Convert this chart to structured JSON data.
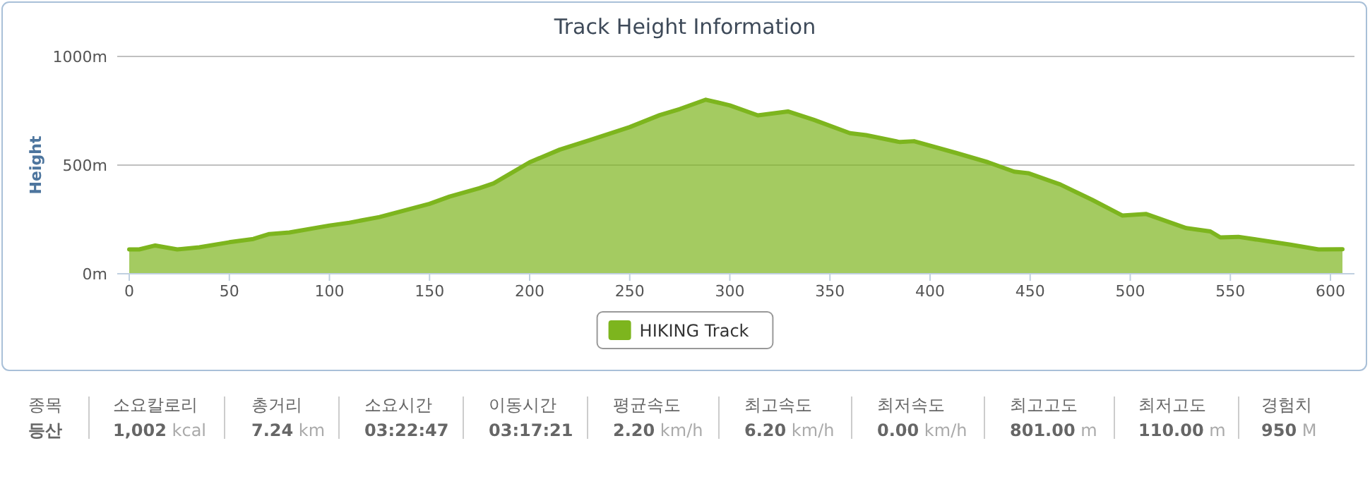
{
  "chart_data": [
    {
      "type": "area",
      "title": "Track Height Information",
      "ylabel": "Height",
      "xlim": [
        -6,
        612
      ],
      "xticks": [
        0,
        50,
        100,
        150,
        200,
        250,
        300,
        350,
        400,
        450,
        500,
        550,
        600
      ],
      "ylim": [
        0,
        1000
      ],
      "yticks": [
        {
          "value": 0,
          "label": "0m"
        },
        {
          "value": 500,
          "label": "500m"
        },
        {
          "value": 1000,
          "label": "1000m"
        }
      ],
      "grid": "y",
      "legend": "bottom",
      "series": [
        {
          "name": "HIKING Track",
          "color": "#7db51e",
          "x": [
            0,
            5,
            13,
            24,
            35,
            50,
            62,
            70,
            80,
            100,
            110,
            125,
            150,
            160,
            175,
            182,
            190,
            200,
            215,
            230,
            250,
            265,
            275,
            288,
            300,
            314,
            329,
            342,
            360,
            368,
            385,
            392,
            413,
            429,
            442,
            449,
            465,
            481,
            496,
            508,
            528,
            540,
            545,
            554,
            580,
            594,
            606
          ],
          "values": [
            112,
            112,
            130,
            112,
            122,
            145,
            160,
            183,
            190,
            222,
            235,
            261,
            322,
            355,
            394,
            416,
            459,
            513,
            571,
            615,
            675,
            730,
            758,
            801,
            775,
            729,
            747,
            708,
            647,
            638,
            606,
            610,
            556,
            513,
            470,
            463,
            411,
            340,
            268,
            275,
            210,
            195,
            167,
            170,
            134,
            112,
            113
          ]
        }
      ]
    },
    {
      "type": "other",
      "categories": [
        "종목",
        "소요칼로리",
        "총거리",
        "소요시간",
        "이동시간",
        "평균속도",
        "최고속도",
        "최저속도",
        "최고고도",
        "최저고도",
        "경험치"
      ],
      "value_labels": [
        "등산",
        "1,002 kcal",
        "7.24 km",
        "03:22:47",
        "03:17:21",
        "2.20 km/h",
        "6.20 km/h",
        "0.00 km/h",
        "801.00 m",
        "110.00 m",
        "950 M"
      ]
    }
  ]
}
